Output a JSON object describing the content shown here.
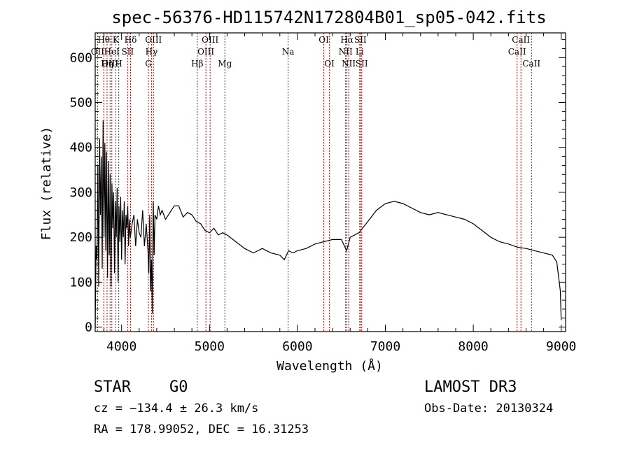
{
  "chart_data": {
    "type": "line",
    "title": "spec-56376-HD115742N172804B01_sp05-042.fits",
    "xlabel": "Wavelength (Å)",
    "ylabel": "Flux (relative)",
    "xlim": [
      3700,
      9050
    ],
    "ylim": [
      -10,
      655
    ],
    "xticks": [
      4000,
      5000,
      6000,
      7000,
      8000,
      9000
    ],
    "yticks": [
      0,
      100,
      200,
      300,
      400,
      500,
      600
    ],
    "series": [
      {
        "name": "flux",
        "x": [
          3700,
          3710,
          3720,
          3730,
          3740,
          3750,
          3760,
          3770,
          3780,
          3790,
          3800,
          3810,
          3820,
          3830,
          3840,
          3850,
          3860,
          3870,
          3880,
          3890,
          3900,
          3910,
          3920,
          3930,
          3940,
          3950,
          3960,
          3970,
          3980,
          3990,
          4000,
          4010,
          4020,
          4030,
          4040,
          4050,
          4060,
          4070,
          4080,
          4090,
          4100,
          4120,
          4140,
          4160,
          4180,
          4200,
          4220,
          4240,
          4260,
          4280,
          4300,
          4310,
          4320,
          4330,
          4340,
          4350,
          4360,
          4370,
          4380,
          4400,
          4420,
          4440,
          4460,
          4480,
          4500,
          4550,
          4600,
          4650,
          4700,
          4750,
          4800,
          4850,
          4900,
          4950,
          5000,
          5050,
          5100,
          5150,
          5200,
          5300,
          5400,
          5500,
          5600,
          5700,
          5800,
          5850,
          5900,
          5950,
          6000,
          6100,
          6200,
          6300,
          6400,
          6500,
          6560,
          6600,
          6700,
          6800,
          6900,
          7000,
          7100,
          7200,
          7300,
          7400,
          7500,
          7600,
          7700,
          7800,
          7900,
          8000,
          8100,
          8200,
          8300,
          8400,
          8500,
          8600,
          8700,
          8800,
          8900,
          8950,
          8990,
          9000
        ],
        "values": [
          0,
          180,
          150,
          360,
          90,
          420,
          250,
          380,
          130,
          460,
          200,
          410,
          170,
          390,
          110,
          370,
          160,
          340,
          90,
          320,
          220,
          300,
          120,
          280,
          200,
          310,
          100,
          270,
          190,
          290,
          150,
          260,
          200,
          280,
          140,
          250,
          220,
          270,
          180,
          240,
          200,
          230,
          250,
          180,
          240,
          210,
          200,
          260,
          180,
          230,
          170,
          120,
          250,
          80,
          150,
          30,
          280,
          160,
          250,
          240,
          270,
          250,
          260,
          250,
          240,
          255,
          270,
          270,
          245,
          255,
          250,
          235,
          230,
          215,
          210,
          220,
          205,
          210,
          205,
          190,
          175,
          165,
          175,
          165,
          160,
          150,
          170,
          165,
          170,
          175,
          185,
          190,
          195,
          195,
          170,
          200,
          210,
          235,
          260,
          275,
          280,
          275,
          265,
          255,
          250,
          255,
          250,
          245,
          240,
          230,
          215,
          200,
          190,
          185,
          178,
          175,
          170,
          165,
          160,
          145,
          80,
          15
        ]
      }
    ],
    "spectral_lines": [
      {
        "label": "Hθ",
        "wavelength": 3797,
        "row": 1
      },
      {
        "label": "OII",
        "wavelength": 3727,
        "row": 2
      },
      {
        "label": "OIII",
        "wavelength": 3869,
        "row": 3
      },
      {
        "label": "K",
        "wavelength": 3934,
        "row": 1
      },
      {
        "label": "Hη",
        "wavelength": 3835,
        "row": 3
      },
      {
        "label": "HeI",
        "wavelength": 3889,
        "row": 2
      },
      {
        "label": "H",
        "wavelength": 3968,
        "row": 3
      },
      {
        "label": "SII",
        "wavelength": 4069,
        "row": 2
      },
      {
        "label": "Hδ",
        "wavelength": 4102,
        "row": 1
      },
      {
        "label": "OIII",
        "wavelength": 4363,
        "row": 1
      },
      {
        "label": "Hγ",
        "wavelength": 4340,
        "row": 2
      },
      {
        "label": "G",
        "wavelength": 4305,
        "row": 3
      },
      {
        "label": "Hβ",
        "wavelength": 4861,
        "row": 3
      },
      {
        "label": "OIII",
        "wavelength": 5007,
        "row": 1
      },
      {
        "label": "OIII",
        "wavelength": 4959,
        "row": 2
      },
      {
        "label": "Mg",
        "wavelength": 5175,
        "row": 3
      },
      {
        "label": "Na",
        "wavelength": 5894,
        "row": 2
      },
      {
        "label": "OI",
        "wavelength": 6300,
        "row": 1
      },
      {
        "label": "OI",
        "wavelength": 6364,
        "row": 3
      },
      {
        "label": "Hα",
        "wavelength": 6563,
        "row": 1
      },
      {
        "label": "NII",
        "wavelength": 6548,
        "row": 2
      },
      {
        "label": "NII",
        "wavelength": 6583,
        "row": 3
      },
      {
        "label": "SII",
        "wavelength": 6716,
        "row": 1
      },
      {
        "label": "Li",
        "wavelength": 6708,
        "row": 2
      },
      {
        "label": "SII",
        "wavelength": 6731,
        "row": 3
      },
      {
        "label": "CaII",
        "wavelength": 8542,
        "row": 1
      },
      {
        "label": "CaII",
        "wavelength": 8498,
        "row": 2
      },
      {
        "label": "CaII",
        "wavelength": 8662,
        "row": 3
      }
    ],
    "grid": false
  },
  "info": {
    "object_class": "STAR",
    "subclass": "G0",
    "survey": "LAMOST DR3",
    "cz": "cz = −134.4 ± 26.3 km/s",
    "obs_date": "Obs-Date: 20130324",
    "coords": "RA = 178.99052, DEC =  16.31253"
  },
  "colors": {
    "spectrum": "#000000",
    "line_markers": "#cc0000",
    "axes": "#000000"
  }
}
